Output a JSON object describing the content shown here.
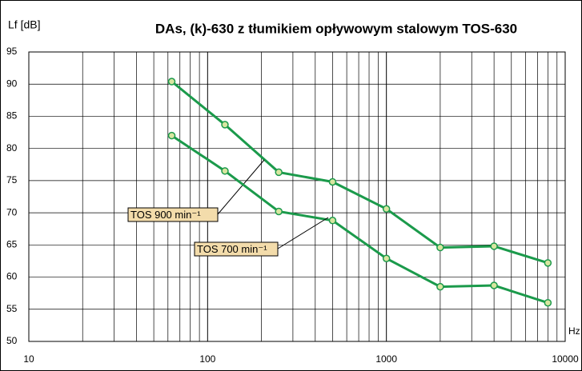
{
  "chart_data": {
    "type": "line",
    "title": "DAs, (k)-630 z tłumikiem opływowym stalowym TOS-630",
    "y_label": "Lf [dB]",
    "x_label": "Hz",
    "x": [
      63,
      125,
      250,
      500,
      1000,
      2000,
      4000,
      8000
    ],
    "series": [
      {
        "name": "TOS 900 min⁻¹",
        "color": "#1b9a4b",
        "values": [
          90.4,
          83.7,
          76.3,
          74.8,
          70.6,
          64.6,
          64.8,
          62.2
        ]
      },
      {
        "name": "TOS 700 min⁻¹",
        "color": "#1b9a4b",
        "values": [
          82.0,
          76.5,
          70.2,
          68.8,
          62.9,
          58.5,
          58.7,
          56.0
        ]
      }
    ],
    "marker_color": "#d8e6a0",
    "annotation_color": "#f3dcab",
    "xlog": true,
    "xlim": [
      10,
      10000
    ],
    "xticks": [
      10,
      100,
      1000,
      10000
    ],
    "xminor": [
      20,
      30,
      40,
      50,
      60,
      70,
      80,
      90,
      200,
      300,
      400,
      500,
      600,
      700,
      800,
      900,
      2000,
      3000,
      4000,
      5000,
      6000,
      7000,
      8000,
      9000
    ],
    "ylim": [
      50,
      95
    ],
    "yticks": [
      50,
      55,
      60,
      65,
      70,
      75,
      80,
      85,
      90,
      95
    ],
    "grid": true
  }
}
